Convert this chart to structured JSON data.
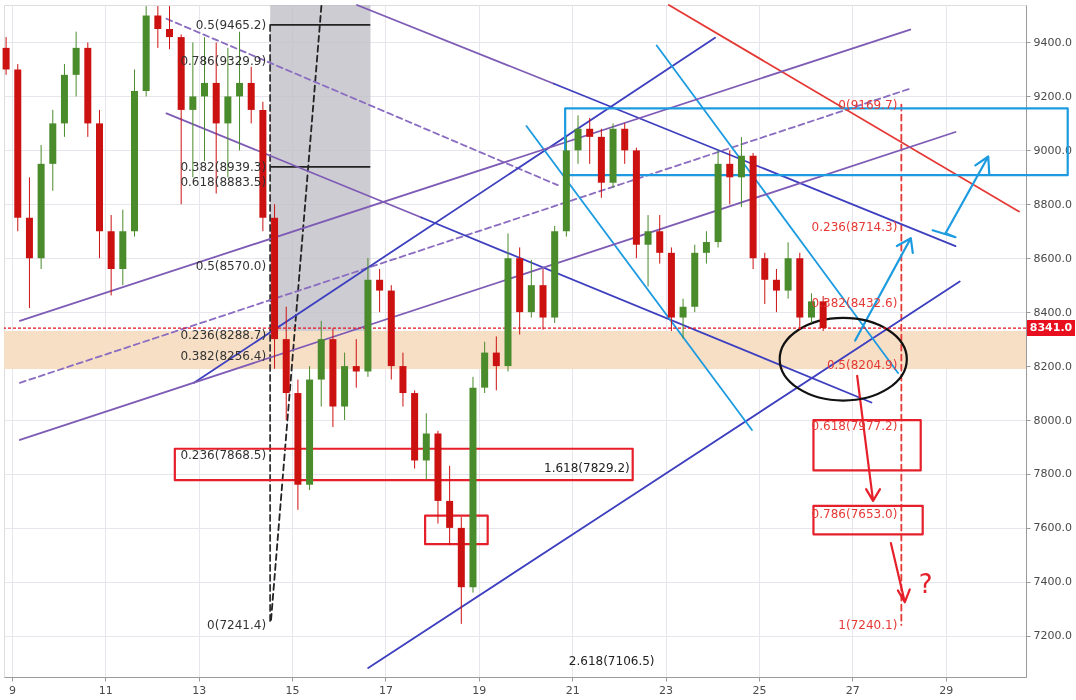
{
  "chart_data": {
    "type": "candlestick",
    "x": [
      8.875,
      9.125,
      9.375,
      9.625,
      9.875,
      10.125,
      10.375,
      10.625,
      10.875,
      11.125,
      11.375,
      11.625,
      11.875,
      12.125,
      12.375,
      12.625,
      12.875,
      13.125,
      13.375,
      13.625,
      13.875,
      14.125,
      14.375,
      14.625,
      14.875,
      15.125,
      15.375,
      15.625,
      15.875,
      16.125,
      16.375,
      16.625,
      16.875,
      17.125,
      17.375,
      17.625,
      17.875,
      18.125,
      18.375,
      18.625,
      18.875,
      19.125,
      19.375,
      19.625,
      19.875,
      20.125,
      20.375,
      20.625,
      20.875,
      21.125,
      21.375,
      21.625,
      21.875,
      22.125,
      22.375,
      22.625,
      22.875,
      23.125,
      23.375,
      23.625,
      23.875,
      24.125,
      24.375,
      24.625,
      24.875,
      25.125,
      25.375,
      25.625,
      25.875,
      26.125,
      26.375
    ],
    "ohlc": [
      [
        9380,
        9420,
        9280,
        9300
      ],
      [
        9300,
        9320,
        8700,
        8750
      ],
      [
        8750,
        8900,
        8415,
        8600
      ],
      [
        8600,
        9020,
        8560,
        8950
      ],
      [
        8950,
        9150,
        8850,
        9100
      ],
      [
        9100,
        9320,
        9050,
        9280
      ],
      [
        9280,
        9440,
        9200,
        9380
      ],
      [
        9380,
        9400,
        9050,
        9100
      ],
      [
        9100,
        9150,
        8600,
        8700
      ],
      [
        8700,
        8760,
        8462,
        8560
      ],
      [
        8560,
        8780,
        8500,
        8700
      ],
      [
        8700,
        9300,
        8680,
        9220
      ],
      [
        9220,
        9535,
        9200,
        9500
      ],
      [
        9500,
        9535,
        9380,
        9450
      ],
      [
        9450,
        9535,
        9375,
        9420
      ],
      [
        9420,
        9430,
        8800,
        9150
      ],
      [
        9150,
        9400,
        8900,
        9200
      ],
      [
        9200,
        9420,
        8960,
        9250
      ],
      [
        9250,
        9400,
        8840,
        9100
      ],
      [
        9100,
        9380,
        8900,
        9200
      ],
      [
        9200,
        9440,
        9000,
        9250
      ],
      [
        9250,
        9310,
        9100,
        9150
      ],
      [
        9150,
        9180,
        8700,
        8750
      ],
      [
        8750,
        8800,
        8190,
        8300
      ],
      [
        8300,
        8420,
        8000,
        8100
      ],
      [
        8100,
        8150,
        7667,
        7760
      ],
      [
        7760,
        8200,
        7740,
        8150
      ],
      [
        8150,
        8368,
        8050,
        8300
      ],
      [
        8300,
        8340,
        7974,
        8050
      ],
      [
        8050,
        8250,
        8000,
        8200
      ],
      [
        8200,
        8300,
        8120,
        8180
      ],
      [
        8180,
        8601,
        8160,
        8520
      ],
      [
        8520,
        8560,
        8400,
        8480
      ],
      [
        8480,
        8500,
        8150,
        8200
      ],
      [
        8200,
        8250,
        8050,
        8100
      ],
      [
        8100,
        8110,
        7820,
        7850
      ],
      [
        7850,
        8025,
        7780,
        7950
      ],
      [
        7950,
        7960,
        7616,
        7700
      ],
      [
        7700,
        7830,
        7536,
        7600
      ],
      [
        7600,
        7640,
        7244,
        7380
      ],
      [
        7380,
        8160,
        7360,
        8120
      ],
      [
        8120,
        8290,
        8100,
        8250
      ],
      [
        8250,
        8310,
        8110,
        8200
      ],
      [
        8200,
        8692,
        8180,
        8600
      ],
      [
        8600,
        8640,
        8317,
        8400
      ],
      [
        8400,
        8594,
        8380,
        8500
      ],
      [
        8500,
        8560,
        8335,
        8380
      ],
      [
        8380,
        8720,
        8360,
        8700
      ],
      [
        8700,
        9050,
        8680,
        9000
      ],
      [
        9000,
        9130,
        8950,
        9080
      ],
      [
        9080,
        9120,
        8950,
        9050
      ],
      [
        9050,
        9080,
        8824,
        8880
      ],
      [
        8880,
        9100,
        8860,
        9080
      ],
      [
        9080,
        9101,
        8950,
        9000
      ],
      [
        9000,
        9010,
        8600,
        8650
      ],
      [
        8650,
        8760,
        8495,
        8700
      ],
      [
        8700,
        8760,
        8580,
        8620
      ],
      [
        8620,
        8640,
        8330,
        8380
      ],
      [
        8380,
        8450,
        8302,
        8420
      ],
      [
        8420,
        8650,
        8400,
        8620
      ],
      [
        8620,
        8700,
        8580,
        8660
      ],
      [
        8660,
        9000,
        8640,
        8950
      ],
      [
        8950,
        9000,
        8800,
        8900
      ],
      [
        8900,
        9049,
        8790,
        8980
      ],
      [
        8980,
        8990,
        8560,
        8600
      ],
      [
        8600,
        8620,
        8430,
        8520
      ],
      [
        8520,
        8560,
        8400,
        8480
      ],
      [
        8480,
        8659,
        8450,
        8600
      ],
      [
        8600,
        8620,
        8335,
        8380
      ],
      [
        8380,
        8470,
        8360,
        8440
      ],
      [
        8440,
        8460,
        8330,
        8341
      ]
    ],
    "colors": [
      "#cc1111",
      "#cc1111",
      "#cc1111",
      "#4a8b2c",
      "#4a8b2c",
      "#4a8b2c",
      "#4a8b2c",
      "#cc1111",
      "#cc1111",
      "#cc1111",
      "#4a8b2c",
      "#4a8b2c",
      "#4a8b2c",
      "#cc1111",
      "#cc1111",
      "#cc1111",
      "#4a8b2c",
      "#4a8b2c",
      "#cc1111",
      "#4a8b2c",
      "#4a8b2c",
      "#cc1111",
      "#cc1111",
      "#cc1111",
      "#cc1111",
      "#cc1111",
      "#4a8b2c",
      "#4a8b2c",
      "#cc1111",
      "#4a8b2c",
      "#cc1111",
      "#4a8b2c",
      "#cc1111",
      "#cc1111",
      "#cc1111",
      "#cc1111",
      "#4a8b2c",
      "#cc1111",
      "#cc1111",
      "#cc1111",
      "#4a8b2c",
      "#4a8b2c",
      "#cc1111",
      "#4a8b2c",
      "#cc1111",
      "#4a8b2c",
      "#cc1111",
      "#4a8b2c",
      "#4a8b2c",
      "#4a8b2c",
      "#cc1111",
      "#cc1111",
      "#4a8b2c",
      "#cc1111",
      "#cc1111",
      "#4a8b2c",
      "#cc1111",
      "#cc1111",
      "#4a8b2c",
      "#4a8b2c",
      "#4a8b2c",
      "#4a8b2c",
      "#cc1111",
      "#4a8b2c",
      "#cc1111",
      "#cc1111",
      "#cc1111",
      "#4a8b2c",
      "#cc1111",
      "#4a8b2c",
      "#cc1111"
    ],
    "xlim": [
      8.83,
      30.72
    ],
    "xticks": [
      9,
      11,
      13,
      15,
      17,
      19,
      21,
      23,
      25,
      27,
      29
    ],
    "ylim": [
      7047,
      9539
    ],
    "yticks": [
      {
        "value": 7200,
        "label": "7200.0"
      },
      {
        "value": 7400,
        "label": "7400.0"
      },
      {
        "value": 7600,
        "label": "7600.0"
      },
      {
        "value": 7800,
        "label": "7800.0"
      },
      {
        "value": 8000,
        "label": "8000.0"
      },
      {
        "value": 8200,
        "label": "8200.0"
      },
      {
        "value": 8400,
        "label": "8400.0"
      },
      {
        "value": 8600,
        "label": "8600.0"
      },
      {
        "value": 8800,
        "label": "8800.0"
      },
      {
        "value": 9000,
        "label": "9000.0"
      },
      {
        "value": 9200,
        "label": "9200.0"
      },
      {
        "value": 9400,
        "label": "9400.0"
      }
    ],
    "grid": true,
    "bands": [
      {
        "axis": "y",
        "from": 8189,
        "to": 8330,
        "color": "#f7dfc6"
      }
    ],
    "ref_lines": [
      {
        "axis": "y",
        "value": 8341,
        "label": "8341.0",
        "color": "#e8101f",
        "line_style": "dotted"
      }
    ],
    "series": [
      {
        "type": "line",
        "x": [
          14.53,
          14.53,
          14.53,
          14.53,
          14.53,
          14.53,
          14.53,
          14.53,
          14.53
        ],
        "values": [
          9465.2,
          9329.9,
          8939.3,
          8883.5,
          8570.0,
          8288.7,
          8256.4,
          7868.5,
          7241.4
        ],
        "value_labels": [
          "0.5(9465.2)",
          "0.786(9329.9)",
          "0.382(8939.3)",
          "0.618(8883.5)",
          "0.5(8570.0)",
          "0.236(8288.7)",
          "0.382(8256.4)",
          "0.236(7868.5)",
          "0(7241.4)"
        ],
        "color": "#333333",
        "line_style": "dashed"
      },
      {
        "type": "line",
        "x": [
          28.05,
          28.05,
          28.05,
          28.05,
          28.05,
          28.05,
          28.05
        ],
        "values": [
          9169.7,
          8714.3,
          8432.6,
          8204.9,
          7977.2,
          7653.0,
          7240.1
        ],
        "value_labels": [
          "0(9169.7)",
          "0.236(8714.3)",
          "0.382(8432.6)",
          "0.5(8204.9)",
          "0.618(7977.2)",
          "0.786(7653.0)",
          "1(7240.1)"
        ],
        "color": "#e53935",
        "line_style": "dashed"
      },
      {
        "type": "line",
        "x": [
          14.55,
          15.63
        ],
        "values": [
          7259,
          9539
        ],
        "color": "#222222",
        "line_style": "dashed"
      },
      {
        "type": "line",
        "x": [
          14.55,
          16.66
        ],
        "values": [
          9465,
          9465
        ],
        "color": "#222222"
      },
      {
        "type": "line",
        "x": [
          14.55,
          16.66
        ],
        "values": [
          8939,
          8939
        ],
        "color": "#222222"
      },
      {
        "type": "line",
        "x": [
          9.17,
          28.24
        ],
        "values": [
          8138,
          9229
        ],
        "color": "#8a6cc0",
        "line_style": "dashed"
      },
      {
        "type": "line",
        "x": [
          12.31,
          20.69
        ],
        "values": [
          9488,
          8871
        ],
        "color": "#8a6cc0",
        "line_style": "dashed"
      },
      {
        "type": "line",
        "x": [
          12.31,
          17.77
        ],
        "values": [
          9137,
          8751
        ],
        "color": "#7e5bb5"
      },
      {
        "type": "line",
        "x": [
          16.39,
          20.61
        ],
        "values": [
          9539,
          9247
        ],
        "color": "#7e5bb5"
      },
      {
        "type": "line",
        "x": [
          20.61,
          29.21
        ],
        "values": [
          9247,
          8645
        ],
        "color": "#3d3fbf"
      },
      {
        "type": "line",
        "x": [
          17.77,
          27.41
        ],
        "values": [
          8751,
          8065
        ],
        "color": "#3d3fbf"
      },
      {
        "type": "line",
        "x": [
          12.9,
          24.06
        ],
        "values": [
          8138,
          9418
        ],
        "color": "#3d3fbf"
      },
      {
        "type": "line",
        "x": [
          16.63,
          29.3
        ],
        "values": [
          7080,
          8514
        ],
        "color": "#3d3fbf"
      },
      {
        "type": "line",
        "x": [
          20.02,
          24.85
        ],
        "values": [
          9090,
          7963
        ],
        "color": "#1c9be0"
      },
      {
        "type": "line",
        "x": [
          22.81,
          27.98
        ],
        "values": [
          9389,
          8174
        ],
        "color": "#1c9be0"
      },
      {
        "type": "line",
        "x": [
          23.07,
          30.57
        ],
        "values": [
          9539,
          8773
        ],
        "color": "#e53935"
      },
      {
        "type": "line",
        "x": [
          9.17,
          28.24
        ],
        "values": [
          8368,
          9448
        ],
        "color": "#7e5bb5"
      },
      {
        "type": "line",
        "x": [
          9.17,
          29.21
        ],
        "values": [
          7926,
          9068
        ],
        "color": "#7e5bb5"
      }
    ],
    "annotations": [
      "1.618(7829.2)",
      "2.618(7106.5)",
      "?"
    ]
  }
}
